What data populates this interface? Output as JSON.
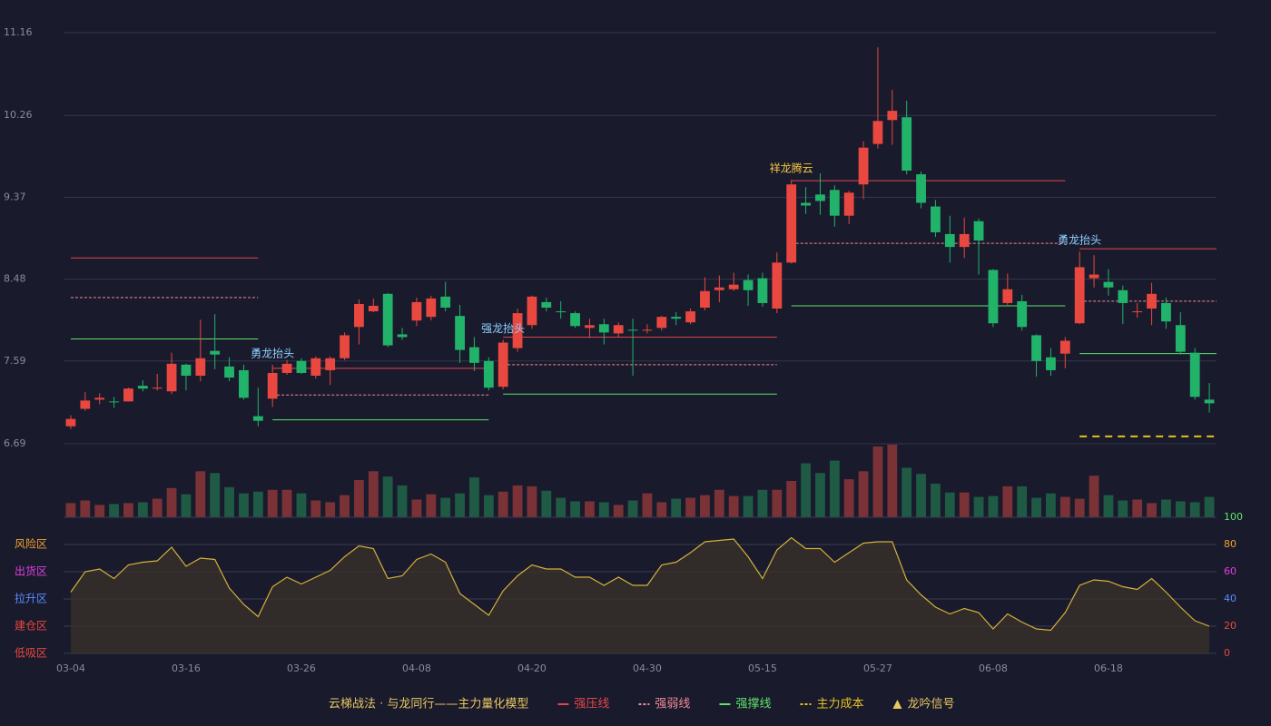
{
  "chart_data": [
    {
      "type": "candlestick",
      "open": [
        6.88,
        7.07,
        7.17,
        7.15,
        7.15,
        7.32,
        7.29,
        7.26,
        7.55,
        7.43,
        7.7,
        7.53,
        7.49,
        6.99,
        7.18,
        7.46,
        7.59,
        7.43,
        7.49,
        7.62,
        7.96,
        8.13,
        8.32,
        7.88,
        8.03,
        8.07,
        8.29,
        8.08,
        7.74,
        7.59,
        7.31,
        7.73,
        7.98,
        8.23,
        8.13,
        8.11,
        7.95,
        7.99,
        7.89,
        7.93,
        7.92,
        7.95,
        8.07,
        8.01,
        8.17,
        8.36,
        8.37,
        8.47,
        8.49,
        8.16,
        8.66,
        9.31,
        9.4,
        9.45,
        9.17,
        9.51,
        9.95,
        10.21,
        10.24,
        9.62,
        9.27,
        8.97,
        8.83,
        9.11,
        8.58,
        8.22,
        8.24,
        7.87,
        7.63,
        7.67,
        8.0,
        8.49,
        8.45,
        8.36,
        8.12,
        8.16,
        8.22,
        7.98,
        7.68,
        7.17
      ],
      "high": [
        7.0,
        7.25,
        7.24,
        7.2,
        7.3,
        7.38,
        7.45,
        7.68,
        7.56,
        8.04,
        8.1,
        7.63,
        7.55,
        7.3,
        7.55,
        7.6,
        7.62,
        7.64,
        7.64,
        7.9,
        8.26,
        8.27,
        8.33,
        7.95,
        8.28,
        8.3,
        8.45,
        8.2,
        7.85,
        7.63,
        7.82,
        8.16,
        8.3,
        8.28,
        8.24,
        8.13,
        8.05,
        8.05,
        8.01,
        8.05,
        7.99,
        8.08,
        8.12,
        8.16,
        8.5,
        8.52,
        8.55,
        8.53,
        8.55,
        8.77,
        9.56,
        9.48,
        9.63,
        9.5,
        9.44,
        9.98,
        11.0,
        10.54,
        10.42,
        9.65,
        9.34,
        9.17,
        9.15,
        9.14,
        8.59,
        8.54,
        8.31,
        7.88,
        7.73,
        7.85,
        8.78,
        8.74,
        8.59,
        8.41,
        8.22,
        8.44,
        8.28,
        8.12,
        7.73,
        7.35
      ],
      "low": [
        6.85,
        7.05,
        7.12,
        7.08,
        7.15,
        7.26,
        7.27,
        7.23,
        7.27,
        7.37,
        7.5,
        7.37,
        7.17,
        6.88,
        7.09,
        7.44,
        7.45,
        7.4,
        7.33,
        7.6,
        7.77,
        8.12,
        7.74,
        7.82,
        7.97,
        8.03,
        8.13,
        7.57,
        7.48,
        7.27,
        7.28,
        7.69,
        7.94,
        8.13,
        8.05,
        7.95,
        7.84,
        7.77,
        7.85,
        7.43,
        7.89,
        7.92,
        7.98,
        7.99,
        8.14,
        8.23,
        8.35,
        8.19,
        8.18,
        8.11,
        8.65,
        9.19,
        9.18,
        9.05,
        9.08,
        9.35,
        9.9,
        9.94,
        9.62,
        9.25,
        8.94,
        8.66,
        8.71,
        8.53,
        7.96,
        8.2,
        7.92,
        7.42,
        7.43,
        7.51,
        7.99,
        8.39,
        8.3,
        7.99,
        8.06,
        7.98,
        7.94,
        7.66,
        7.17,
        7.03
      ],
      "close": [
        6.96,
        7.16,
        7.19,
        7.14,
        7.29,
        7.29,
        7.3,
        7.56,
        7.43,
        7.62,
        7.66,
        7.41,
        7.19,
        6.94,
        7.46,
        7.56,
        7.46,
        7.62,
        7.62,
        7.87,
        8.21,
        8.19,
        7.76,
        7.85,
        8.23,
        8.27,
        8.17,
        7.71,
        7.57,
        7.3,
        7.79,
        8.11,
        8.29,
        8.17,
        8.12,
        7.97,
        7.98,
        7.9,
        7.98,
        7.92,
        7.93,
        8.07,
        8.05,
        8.13,
        8.35,
        8.39,
        8.42,
        8.36,
        8.22,
        8.66,
        9.51,
        9.28,
        9.33,
        9.17,
        9.42,
        9.91,
        10.2,
        10.31,
        9.66,
        9.31,
        8.99,
        8.83,
        8.97,
        8.9,
        8.0,
        8.37,
        7.96,
        7.59,
        7.49,
        7.81,
        8.61,
        8.53,
        8.39,
        8.22,
        8.13,
        8.32,
        8.02,
        7.69,
        7.2,
        7.13
      ],
      "up_color": "#e8483f",
      "down_color": "#22b36a",
      "ylim": [
        6.69,
        11.16
      ],
      "yticks": [
        6.69,
        7.59,
        8.48,
        9.37,
        10.26,
        11.16
      ],
      "grid": true,
      "legend_title": "云梯战法 · 与龙同行——主力量化模型",
      "lines": [
        {
          "name": "强压线",
          "color": "#e0474c",
          "dash": false,
          "segments": [
            {
              "from": 0,
              "to": 13,
              "value": 8.71
            },
            {
              "from": 14,
              "to": 29,
              "value": 7.51
            },
            {
              "from": 30,
              "to": 49,
              "value": 7.85
            },
            {
              "from": 50,
              "to": 69,
              "value": 9.55
            },
            {
              "from": 70,
              "to": 79,
              "value": 8.81
            }
          ]
        },
        {
          "name": "强弱线",
          "color": "#f08a9a",
          "dash": true,
          "segments": [
            {
              "from": 0,
              "to": 13,
              "value": 8.28
            },
            {
              "from": 14,
              "to": 29,
              "value": 7.22
            },
            {
              "from": 30,
              "to": 49,
              "value": 7.55
            },
            {
              "from": 50,
              "to": 69,
              "value": 8.87
            },
            {
              "from": 70,
              "to": 79,
              "value": 8.24
            }
          ]
        },
        {
          "name": "强撑线",
          "color": "#5ee26a",
          "dash": false,
          "segments": [
            {
              "from": 0,
              "to": 13,
              "value": 7.83
            },
            {
              "from": 14,
              "to": 29,
              "value": 6.95
            },
            {
              "from": 30,
              "to": 49,
              "value": 7.23
            },
            {
              "from": 50,
              "to": 69,
              "value": 8.19
            },
            {
              "from": 70,
              "to": 79,
              "value": 7.67
            }
          ]
        },
        {
          "name": "主力成本",
          "color": "#e6c020",
          "dash": true,
          "segments": [
            {
              "from": 70,
              "to": 79,
              "value": 6.77
            }
          ]
        }
      ],
      "signals": {
        "name": "龙吟信号",
        "color": "#e8c860",
        "points": [
          {
            "index": 14,
            "label": "勇龙抬头",
            "color": "#8fd0ff"
          },
          {
            "index": 30,
            "label": "强龙抬头",
            "color": "#8fd0ff"
          },
          {
            "index": 50,
            "label": "祥龙腾云",
            "color": "#f5c542"
          },
          {
            "index": 70,
            "label": "勇龙抬头",
            "color": "#8fd0ff"
          }
        ]
      }
    },
    {
      "type": "bar",
      "values": [
        16,
        19,
        14,
        15,
        16,
        17,
        21,
        33,
        26,
        52,
        50,
        34,
        27,
        29,
        31,
        31,
        27,
        19,
        17,
        25,
        42,
        52,
        46,
        36,
        20,
        26,
        22,
        27,
        45,
        25,
        29,
        36,
        35,
        30,
        22,
        18,
        18,
        17,
        14,
        19,
        27,
        17,
        21,
        22,
        25,
        31,
        24,
        24,
        31,
        31,
        41,
        61,
        50,
        64,
        43,
        52,
        80,
        82,
        56,
        49,
        38,
        28,
        28,
        23,
        24,
        35,
        35,
        22,
        27,
        23,
        21,
        47,
        25,
        19,
        20,
        16,
        20,
        18,
        17,
        23
      ],
      "up_color": "#7a3236",
      "down_color": "#1f5a45"
    },
    {
      "type": "line",
      "categories": [
        "03-04",
        null,
        null,
        null,
        null,
        null,
        null,
        null,
        "03-16",
        null,
        null,
        null,
        null,
        null,
        null,
        null,
        "03-26",
        null,
        null,
        null,
        null,
        null,
        null,
        null,
        "04-08",
        null,
        null,
        null,
        null,
        null,
        null,
        null,
        "04-20",
        null,
        null,
        null,
        null,
        null,
        null,
        null,
        "04-30",
        null,
        null,
        null,
        null,
        null,
        null,
        null,
        "05-15",
        null,
        null,
        null,
        null,
        null,
        null,
        null,
        "05-27",
        null,
        null,
        null,
        null,
        null,
        null,
        null,
        "06-08",
        null,
        null,
        null,
        null,
        null,
        null,
        null,
        "06-18",
        null,
        null,
        null,
        null,
        null,
        null,
        null
      ],
      "values": [
        45,
        60,
        62,
        55,
        65,
        67,
        68,
        78,
        64,
        70,
        69,
        48,
        36,
        27,
        49,
        56,
        51,
        56,
        61,
        71,
        79,
        77,
        55,
        57,
        69,
        73,
        67,
        44,
        36,
        28,
        46,
        57,
        65,
        62,
        62,
        56,
        56,
        50,
        56,
        50,
        50,
        65,
        67,
        74,
        82,
        83,
        84,
        71,
        55,
        76,
        85,
        77,
        77,
        67,
        74,
        81,
        82,
        82,
        54,
        43,
        34,
        29,
        33,
        30,
        18,
        29,
        23,
        18,
        17,
        30,
        50,
        54,
        53,
        49,
        47,
        55,
        45,
        34,
        24,
        20
      ],
      "color": "#d4b13a",
      "ylim": [
        0,
        100
      ],
      "yticks": [
        0,
        20,
        40,
        60,
        80,
        100
      ],
      "ytick_colors": [
        "#e8483f",
        "#e8483f",
        "#5a8cff",
        "#e040e0",
        "#f0a030",
        "#5ee26a"
      ],
      "zones": [
        {
          "label": "风险区",
          "value": 80,
          "color": "#f0a030"
        },
        {
          "label": "出货区",
          "value": 60,
          "color": "#e040e0"
        },
        {
          "label": "拉升区",
          "value": 40,
          "color": "#5a8cff"
        },
        {
          "label": "建仓区",
          "value": 20,
          "color": "#e8483f"
        },
        {
          "label": "低吸区",
          "value": 0,
          "color": "#e8483f"
        }
      ]
    }
  ]
}
